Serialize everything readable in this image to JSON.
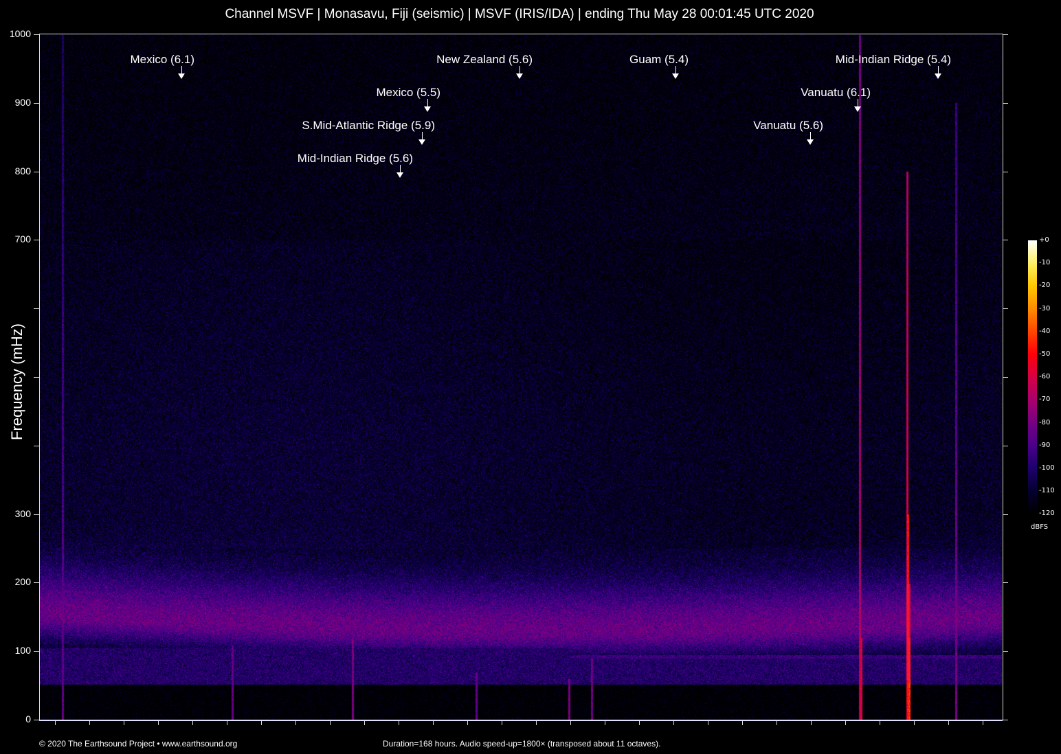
{
  "chart_data": {
    "type": "heatmap",
    "title": "Channel MSVF | Monasavu, Fiji (seismic) | MSVF (IRIS/IDA) | ending Thu May 28 00:01:45 UTC 2020",
    "ylabel": "Frequency (mHz)",
    "xlabel": "",
    "ylim": [
      0,
      1000
    ],
    "xlim_hours": [
      0,
      168
    ],
    "y_ticks": [
      0,
      100,
      200,
      300,
      400,
      500,
      600,
      700,
      800,
      900,
      1000
    ],
    "y_tick_labels": [
      "0",
      "100",
      "200",
      "300",
      "",
      "",
      "",
      "700",
      "800",
      "900",
      "1000"
    ],
    "x_tick_interval_hours": 6,
    "colorbar": {
      "unit": "dBFS",
      "range": [
        -120,
        0
      ],
      "tick_labels": [
        "+0",
        "-10",
        "-20",
        "-30",
        "-40",
        "-50",
        "-60",
        "-70",
        "-80",
        "-90",
        "-100",
        "-110",
        "-120"
      ]
    },
    "events": [
      {
        "label": "Mexico (6.1)",
        "hour": 24.8,
        "row": 0
      },
      {
        "label": "New Zealand (5.6)",
        "hour": 83.8,
        "row": 0
      },
      {
        "label": "Guam (5.4)",
        "hour": 111.1,
        "row": 0
      },
      {
        "label": "Mid-Indian Ridge (5.4)",
        "hour": 156.9,
        "row": 0
      },
      {
        "label": "Mexico (5.5)",
        "hour": 67.8,
        "row": 1
      },
      {
        "label": "Vanuatu (6.1)",
        "hour": 142.8,
        "row": 1
      },
      {
        "label": "S.Mid-Atlantic Ridge (5.9)",
        "hour": 66.8,
        "row": 2
      },
      {
        "label": "Vanuatu (5.6)",
        "hour": 134.6,
        "row": 2
      },
      {
        "label": "Mid-Indian Ridge (5.6)",
        "hour": 63.0,
        "row": 3
      }
    ]
  },
  "footer": {
    "copyright": "© 2020 The Earthsound Project • www.earthsound.org",
    "info": "Duration=168 hours. Audio speed-up=1800× (transposed about 11 octaves)."
  }
}
